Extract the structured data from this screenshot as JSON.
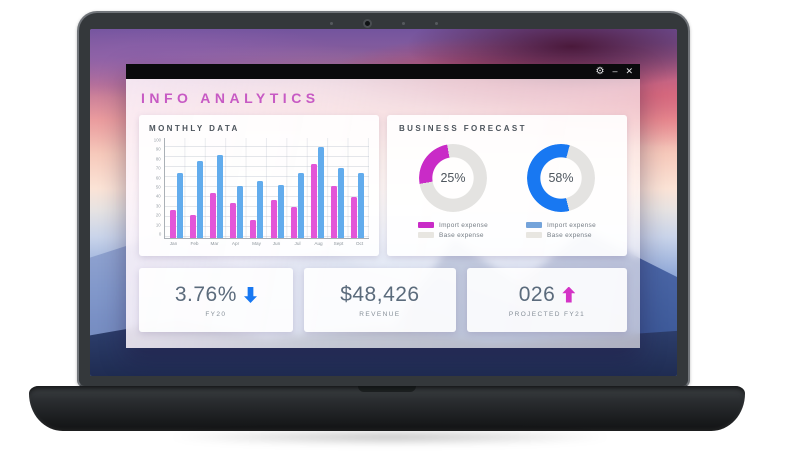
{
  "window": {
    "title": "INFO ANALYTICS",
    "controls": {
      "settings": "⚙",
      "minimize": "–",
      "close": "✕"
    }
  },
  "colors": {
    "accent_magenta": "#c92bc7",
    "accent_blue": "#1878f2",
    "bar_pink": "#e356d8",
    "bar_blue": "#62aced",
    "donut_rest": "#e4e3e1",
    "legend_blue_swatch": "#74a3da",
    "legend_gray_swatch": "#e8e6e1"
  },
  "monthly": {
    "title": "MONTHLY DATA"
  },
  "forecast": {
    "title": "BUSINESS FORECAST",
    "donuts": [
      {
        "label": "25%",
        "value": 25,
        "color": "#c92bc7",
        "start_deg": 260,
        "legend": [
          {
            "label": "Import expense",
            "color": "#c92bc7"
          },
          {
            "label": "Base expense",
            "color": "#e8e6e1"
          }
        ]
      },
      {
        "label": "58%",
        "value": 58,
        "color": "#1878f2",
        "start_deg": 166,
        "legend": [
          {
            "label": "Import expense",
            "color": "#74a3da"
          },
          {
            "label": "Base expense",
            "color": "#e8e6e1"
          }
        ]
      }
    ]
  },
  "stats": [
    {
      "value": "3.76%",
      "label": "FY20",
      "arrow": {
        "dir": "down",
        "color": "#1878f2"
      }
    },
    {
      "value": "$48,426",
      "label": "REVENUE",
      "arrow": null
    },
    {
      "value": "026",
      "label": "PROJECTED FY21",
      "arrow": {
        "dir": "up",
        "color": "#d433c6"
      }
    }
  ],
  "chart_data": [
    {
      "type": "bar",
      "title": "MONTHLY DATA",
      "categories": [
        "Jan",
        "Feb",
        "Mar",
        "Apr",
        "May",
        "Jun",
        "Jul",
        "Aug",
        "Sept",
        "Oct"
      ],
      "series": [
        {
          "name": "pink",
          "color": "#e356d8",
          "values": [
            28,
            23,
            45,
            35,
            18,
            38,
            31,
            74,
            52,
            41
          ]
        },
        {
          "name": "blue",
          "color": "#62aced",
          "values": [
            65,
            77,
            83,
            52,
            57,
            53,
            65,
            91,
            70,
            65
          ]
        }
      ],
      "xlabel": "",
      "ylabel": "",
      "ylim": [
        0,
        100
      ],
      "yticks": [
        0,
        10,
        20,
        30,
        40,
        50,
        60,
        70,
        80,
        90,
        100
      ],
      "grid": true,
      "legend_position": "none"
    },
    {
      "type": "pie",
      "title": "BUSINESS FORECAST",
      "charts": [
        {
          "center_label": "25%",
          "slices": [
            {
              "label": "Import expense",
              "value": 25
            },
            {
              "label": "Base expense",
              "value": 75
            }
          ]
        },
        {
          "center_label": "58%",
          "slices": [
            {
              "label": "Import expense",
              "value": 58
            },
            {
              "label": "Base expense",
              "value": 42
            }
          ]
        }
      ]
    }
  ]
}
